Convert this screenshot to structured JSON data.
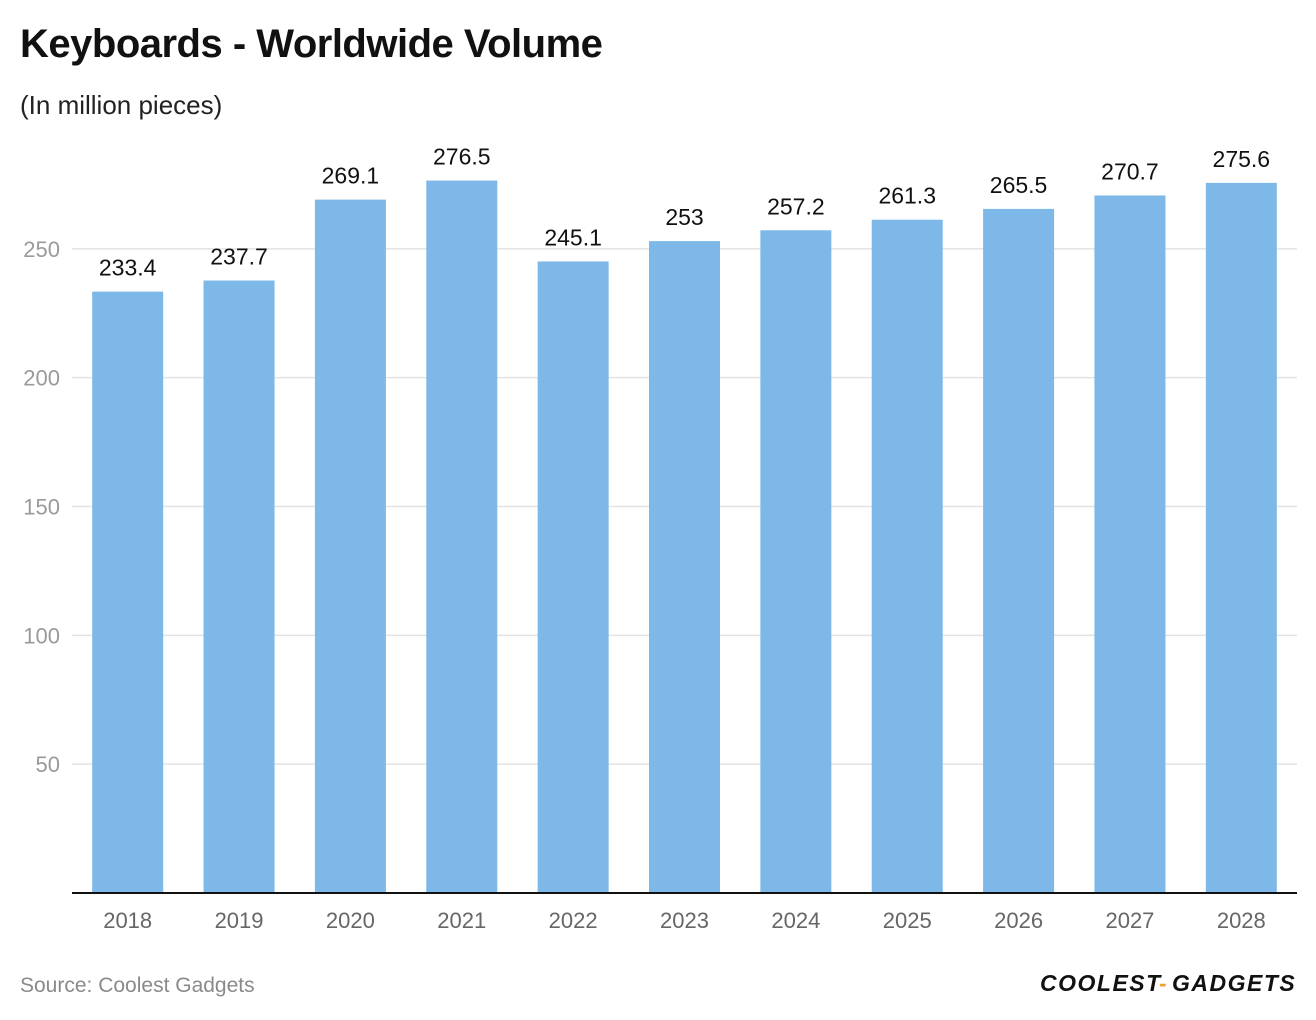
{
  "title": "Keyboards - Worldwide Volume",
  "subtitle": "(In million pieces)",
  "source": "Source: Coolest Gadgets",
  "logo": {
    "text_left": "COOLEST",
    "separator": "-",
    "text_right": "GADGETS"
  },
  "colors": {
    "bar": "#7db8e8",
    "grid": "#e3e3e3",
    "axis": "#111111",
    "tick": "#9a9a9a",
    "label": "#111111",
    "logo_dash": "#f0a030"
  },
  "chart_data": {
    "type": "bar",
    "title": "Keyboards - Worldwide Volume",
    "subtitle": "(In million pieces)",
    "categories": [
      "2018",
      "2019",
      "2020",
      "2021",
      "2022",
      "2023",
      "2024",
      "2025",
      "2026",
      "2027",
      "2028"
    ],
    "values": [
      233.4,
      237.7,
      269.1,
      276.5,
      245.1,
      253,
      257.2,
      261.3,
      265.5,
      270.7,
      275.6
    ],
    "value_labels": [
      "233.4",
      "237.7",
      "269.1",
      "276.5",
      "245.1",
      "253",
      "257.2",
      "261.3",
      "265.5",
      "270.7",
      "275.6"
    ],
    "yticks": [
      50,
      100,
      150,
      200,
      250
    ],
    "ylim": [
      0,
      300
    ],
    "grid": true,
    "legend": "none"
  }
}
